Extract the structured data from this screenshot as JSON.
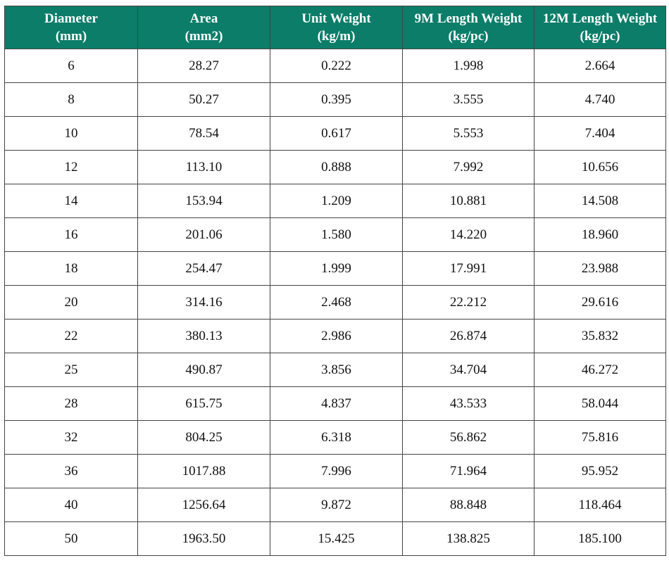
{
  "table": {
    "header": [
      [
        "Diameter",
        "(mm)"
      ],
      [
        "Area",
        "(mm2)"
      ],
      [
        "Unit Weight",
        "(kg/m)"
      ],
      [
        "9M Length Weight",
        "(kg/pc)"
      ],
      [
        "12M Length Weight",
        "(kg/pc)"
      ]
    ],
    "rows": [
      [
        "6",
        "28.27",
        "0.222",
        "1.998",
        "2.664"
      ],
      [
        "8",
        "50.27",
        "0.395",
        "3.555",
        "4.740"
      ],
      [
        "10",
        "78.54",
        "0.617",
        "5.553",
        "7.404"
      ],
      [
        "12",
        "113.10",
        "0.888",
        "7.992",
        "10.656"
      ],
      [
        "14",
        "153.94",
        "1.209",
        "10.881",
        "14.508"
      ],
      [
        "16",
        "201.06",
        "1.580",
        "14.220",
        "18.960"
      ],
      [
        "18",
        "254.47",
        "1.999",
        "17.991",
        "23.988"
      ],
      [
        "20",
        "314.16",
        "2.468",
        "22.212",
        "29.616"
      ],
      [
        "22",
        "380.13",
        "2.986",
        "26.874",
        "35.832"
      ],
      [
        "25",
        "490.87",
        "3.856",
        "34.704",
        "46.272"
      ],
      [
        "28",
        "615.75",
        "4.837",
        "43.533",
        "58.044"
      ],
      [
        "32",
        "804.25",
        "6.318",
        "56.862",
        "75.816"
      ],
      [
        "36",
        "1017.88",
        "7.996",
        "71.964",
        "95.952"
      ],
      [
        "40",
        "1256.64",
        "9.872",
        "88.848",
        "118.464"
      ],
      [
        "50",
        "1963.50",
        "15.425",
        "138.825",
        "185.100"
      ]
    ]
  }
}
